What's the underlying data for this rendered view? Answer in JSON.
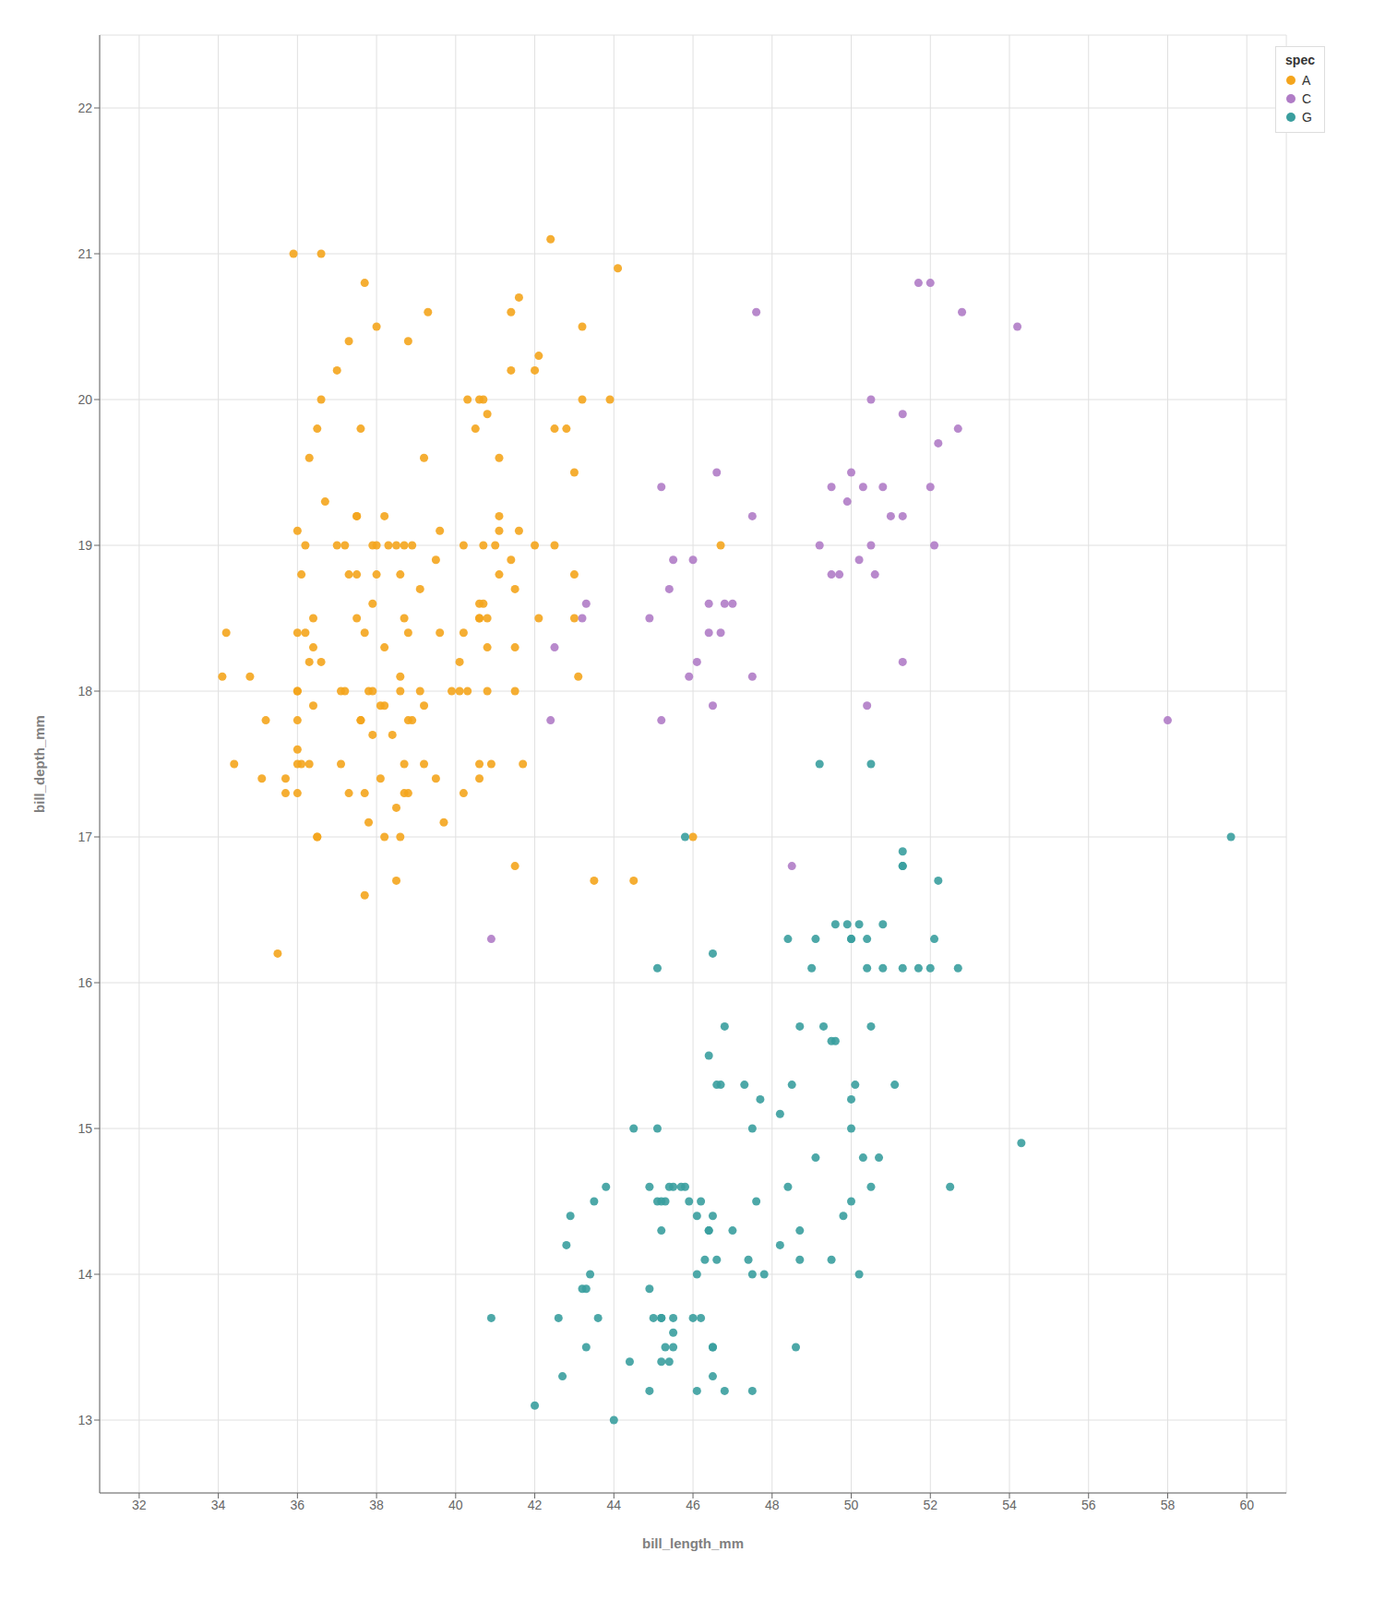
{
  "chart_data": {
    "type": "scatter",
    "x_label": "bill_length_mm",
    "y_label": "bill_depth_mm",
    "xlim": [
      31,
      61
    ],
    "xticks": [
      32,
      34,
      36,
      38,
      40,
      42,
      44,
      46,
      48,
      50,
      52,
      54,
      56,
      58,
      60
    ],
    "ylim": [
      12.5,
      22.5
    ],
    "yticks": [
      13,
      14,
      15,
      16,
      17,
      18,
      19,
      20,
      21,
      22
    ],
    "grid": true,
    "legend": "upper right",
    "legend_title": "spec",
    "series": [
      {
        "name": "A",
        "color": "#f4a51d",
        "x": [
          39.1,
          39.5,
          40.3,
          36.7,
          39.3,
          38.9,
          39.2,
          34.1,
          42.0,
          37.8,
          37.7,
          41.1,
          37.6,
          41.1,
          36.2,
          37.7,
          40.3,
          38.9,
          36.0,
          41.5,
          38.2,
          38.8,
          41.1,
          41.4,
          35.9,
          39.5,
          42.8,
          43.0,
          41.7,
          41.0,
          37.8,
          41.6,
          38.6,
          38.7,
          38.2,
          38.1,
          43.2,
          36.6,
          37.9,
          36.5,
          40.8,
          36.0,
          44.1,
          37.0,
          39.6,
          41.1,
          37.5,
          36.0,
          41.4,
          43.1,
          40.6,
          38.4,
          40.7,
          44.5,
          46.0,
          46.7,
          43.9,
          40.6,
          40.7,
          37.3,
          37.3,
          36.4,
          40.8,
          41.5,
          42.1,
          43.5,
          40.6,
          40.5,
          36.3,
          36.1,
          41.4,
          38.8,
          38.3,
          37.2,
          39.6,
          35.1,
          41.6,
          42.1,
          35.5,
          41.5,
          38.0,
          43.0,
          38.7,
          38.8,
          40.6,
          36.0,
          38.6,
          39.1,
          38.7,
          38.2,
          37.6,
          37.0,
          36.3,
          40.7,
          34.4,
          35.7,
          36.5,
          37.5,
          36.6,
          37.7,
          36.0,
          40.2,
          38.7,
          42.5,
          43.0,
          40.2,
          40.6,
          38.8,
          38.2,
          38.0,
          41.5,
          42.0,
          39.2,
          35.2,
          40.8,
          38.6,
          42.4,
          43.2,
          38.0,
          37.7,
          36.0,
          40.8,
          40.1,
          38.1,
          36.6,
          40.9,
          36.3,
          40.6,
          38.5,
          40.1,
          37.5,
          34.2,
          39.9,
          38.6,
          37.5,
          36.5,
          37.2,
          37.6,
          34.8,
          36.0,
          35.7,
          37.9,
          36.4,
          39.7,
          37.3,
          42.5,
          36.0,
          37.1,
          37.9,
          38.5,
          37.9,
          40.2,
          36.2,
          38.5,
          36.4,
          39.2,
          37.1,
          36.1
        ],
        "y": [
          18.7,
          17.4,
          18.0,
          19.3,
          20.6,
          17.8,
          19.6,
          18.1,
          20.2,
          17.1,
          16.6,
          19.1,
          17.8,
          19.6,
          19.0,
          18.4,
          20.0,
          19.0,
          19.1,
          18.7,
          17.0,
          17.8,
          19.2,
          20.2,
          21.0,
          18.9,
          19.8,
          19.5,
          17.5,
          19.0,
          18.0,
          20.7,
          18.0,
          17.3,
          18.3,
          17.9,
          20.0,
          20.0,
          17.7,
          19.8,
          18.3,
          17.8,
          20.9,
          19.0,
          18.4,
          18.8,
          19.2,
          18.4,
          18.9,
          18.1,
          17.4,
          17.7,
          18.6,
          16.7,
          17.0,
          19.0,
          20.0,
          18.5,
          20.0,
          18.8,
          20.4,
          18.3,
          19.9,
          16.8,
          18.5,
          16.7,
          20.0,
          19.8,
          17.5,
          17.5,
          20.6,
          20.4,
          19.0,
          18.0,
          19.1,
          17.4,
          19.1,
          20.3,
          16.2,
          18.3,
          20.5,
          18.5,
          18.5,
          18.4,
          18.5,
          18.0,
          18.1,
          18.0,
          19.0,
          19.2,
          19.8,
          20.2,
          19.6,
          19.0,
          17.5,
          17.3,
          17.0,
          19.2,
          21.0,
          20.8,
          18.0,
          17.3,
          17.5,
          19.8,
          18.8,
          18.4,
          18.6,
          17.3,
          17.9,
          19.0,
          18.0,
          19.0,
          17.9,
          17.8,
          18.0,
          18.8,
          21.1,
          20.5,
          18.8,
          17.3,
          17.3,
          18.5,
          18.0,
          17.4,
          18.2,
          17.5,
          18.2,
          17.5,
          17.2,
          18.2,
          18.8,
          18.4,
          18.0,
          17.0,
          18.5,
          17.0,
          19.0,
          17.8,
          18.1,
          17.5,
          17.4,
          19.0,
          18.5,
          17.1,
          17.3,
          19.0,
          17.6,
          17.5,
          18.6,
          19.0,
          18.0,
          19.0,
          18.4,
          16.7,
          17.9,
          17.5,
          18.0,
          18.8
        ]
      },
      {
        "name": "C",
        "color": "#b07cc6",
        "x": [
          46.5,
          50.0,
          51.3,
          45.4,
          52.7,
          45.2,
          46.1,
          51.3,
          46.0,
          51.3,
          46.6,
          51.7,
          47.0,
          52.0,
          45.9,
          50.5,
          50.3,
          58.0,
          46.4,
          49.2,
          42.4,
          48.5,
          43.2,
          50.6,
          46.7,
          52.0,
          50.5,
          49.5,
          46.4,
          52.8,
          40.9,
          54.2,
          42.5,
          51.0,
          49.7,
          47.5,
          47.6,
          52.1,
          47.5,
          52.2,
          45.5,
          49.5,
          44.9,
          50.8,
          43.3,
          50.2,
          46.8,
          50.4,
          45.2,
          49.9
        ],
        "y": [
          17.9,
          19.5,
          19.2,
          18.7,
          19.8,
          17.8,
          18.2,
          18.2,
          18.9,
          19.9,
          19.5,
          20.8,
          18.6,
          19.4,
          18.1,
          19.0,
          19.4,
          17.8,
          18.6,
          19.0,
          17.8,
          16.8,
          18.5,
          18.8,
          18.4,
          20.8,
          20.0,
          19.4,
          18.4,
          20.6,
          16.3,
          20.5,
          18.3,
          19.2,
          18.8,
          18.1,
          20.6,
          19.0,
          19.2,
          19.7,
          18.9,
          18.8,
          18.5,
          19.4,
          18.6,
          18.9,
          18.6,
          17.9,
          19.4,
          19.3
        ]
      },
      {
        "name": "G",
        "color": "#3a9e9e",
        "x": [
          46.1,
          50.0,
          48.7,
          50.0,
          47.6,
          46.5,
          45.4,
          46.7,
          43.3,
          46.8,
          40.9,
          49.0,
          45.5,
          48.4,
          45.8,
          49.3,
          42.0,
          49.2,
          46.2,
          48.7,
          50.2,
          45.1,
          46.5,
          46.3,
          42.9,
          46.1,
          44.5,
          47.8,
          48.2,
          50.0,
          47.3,
          42.8,
          45.1,
          59.6,
          49.1,
          48.4,
          42.6,
          44.4,
          44.0,
          48.7,
          42.7,
          49.6,
          45.3,
          49.6,
          50.5,
          43.6,
          45.5,
          50.5,
          44.9,
          45.2,
          46.6,
          48.5,
          45.1,
          50.1,
          46.5,
          45.0,
          43.8,
          45.5,
          43.2,
          50.4,
          45.3,
          46.2,
          45.7,
          54.3,
          45.8,
          49.8,
          49.5,
          43.5,
          50.7,
          47.7,
          46.4,
          48.2,
          46.5,
          46.4,
          48.6,
          47.5,
          51.1,
          45.2,
          45.2,
          49.1,
          52.5,
          47.4,
          50.0,
          44.9,
          50.8,
          43.4,
          51.3,
          47.5,
          52.1,
          47.5,
          52.2,
          45.5,
          49.5,
          44.9,
          50.8,
          43.3,
          50.2,
          46.8,
          50.4,
          45.2,
          49.9,
          46.5,
          50.0,
          51.3,
          45.4,
          52.7,
          45.2,
          46.1,
          51.3,
          46.0,
          51.3,
          46.6,
          51.7,
          47.0,
          52.0,
          45.9,
          50.5,
          50.3,
          46.4
        ],
        "y": [
          13.2,
          16.3,
          14.1,
          15.2,
          14.5,
          13.5,
          14.6,
          15.3,
          13.5,
          15.7,
          13.7,
          16.1,
          13.7,
          14.6,
          14.6,
          15.7,
          13.1,
          17.5,
          13.7,
          15.7,
          14.0,
          16.1,
          13.3,
          14.1,
          14.4,
          14.4,
          15.0,
          14.0,
          14.2,
          15.0,
          15.3,
          14.2,
          14.5,
          17.0,
          14.8,
          16.3,
          13.7,
          13.4,
          13.0,
          14.3,
          13.3,
          16.4,
          14.5,
          15.6,
          15.7,
          13.7,
          13.6,
          14.6,
          14.6,
          14.3,
          15.3,
          15.3,
          15.0,
          15.3,
          16.2,
          13.7,
          14.6,
          14.6,
          13.9,
          16.1,
          13.5,
          14.5,
          14.6,
          14.9,
          17.0,
          14.4,
          14.1,
          14.5,
          14.8,
          15.2,
          14.3,
          15.1,
          14.4,
          15.5,
          13.5,
          15.0,
          15.3,
          13.7,
          14.5,
          16.3,
          14.6,
          14.1,
          14.5,
          13.2,
          16.1,
          14.0,
          16.1,
          13.2,
          16.3,
          14.0,
          16.7,
          13.5,
          15.6,
          13.9,
          16.4,
          13.9,
          16.4,
          13.2,
          16.3,
          13.7,
          16.4,
          13.5,
          16.3,
          16.8,
          13.4,
          16.1,
          13.4,
          14.0,
          16.8,
          13.7,
          16.9,
          14.1,
          16.1,
          14.3,
          16.1,
          14.5,
          17.5,
          14.8,
          14.3
        ]
      }
    ]
  }
}
